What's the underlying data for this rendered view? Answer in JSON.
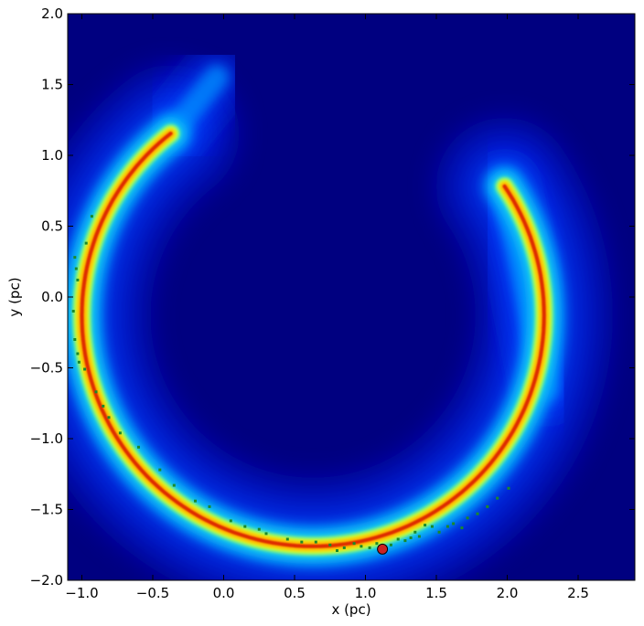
{
  "chart_data": {
    "type": "heatmap",
    "colormap": "jet",
    "xlabel": "x (pc)",
    "ylabel": "y (pc)",
    "xlim": [
      -1.1,
      2.9
    ],
    "ylim": [
      -2.0,
      2.0
    ],
    "x_ticks": [
      -1.0,
      -0.5,
      0.0,
      0.5,
      1.0,
      1.5,
      2.0,
      2.5
    ],
    "y_ticks": [
      2.0,
      1.5,
      1.0,
      0.5,
      0.0,
      -0.5,
      -1.0,
      -1.5,
      -2.0
    ],
    "x_tick_labels": [
      "−1.0",
      "−0.5",
      "0.0",
      "0.5",
      "1.0",
      "1.5",
      "2.0",
      "2.5"
    ],
    "y_tick_labels": [
      "2.0",
      "1.5",
      "1.0",
      "0.5",
      "0.0",
      "−0.5",
      "−1.0",
      "−1.5",
      "−2.0"
    ],
    "grid": false,
    "arc": {
      "center": [
        0.63,
        -0.13
      ],
      "radius": 1.63,
      "angle_start_deg": 128,
      "angle_end_deg": 395,
      "outer_tail_end": [
        -0.05,
        1.55
      ],
      "inner_tail_end": [
        2.28,
        -0.65
      ]
    },
    "marker": {
      "x": 1.12,
      "y": -1.78,
      "color": "#cc2222"
    },
    "stars_color": "#1a8a2a",
    "stars": [
      [
        -1.05,
        0.28
      ],
      [
        -1.04,
        0.2
      ],
      [
        -1.03,
        0.12
      ],
      [
        -0.97,
        0.38
      ],
      [
        -0.93,
        0.57
      ],
      [
        -1.06,
        -0.1
      ],
      [
        -1.05,
        -0.3
      ],
      [
        -1.03,
        -0.4
      ],
      [
        -1.02,
        -0.46
      ],
      [
        -0.98,
        -0.51
      ],
      [
        -0.9,
        -0.67
      ],
      [
        -0.85,
        -0.77
      ],
      [
        -0.81,
        -0.85
      ],
      [
        -0.73,
        -0.96
      ],
      [
        -0.6,
        -1.06
      ],
      [
        -0.45,
        -1.22
      ],
      [
        -0.35,
        -1.33
      ],
      [
        -0.2,
        -1.44
      ],
      [
        -0.1,
        -1.48
      ],
      [
        0.05,
        -1.58
      ],
      [
        0.15,
        -1.62
      ],
      [
        0.25,
        -1.64
      ],
      [
        0.3,
        -1.67
      ],
      [
        0.45,
        -1.71
      ],
      [
        0.55,
        -1.73
      ],
      [
        0.65,
        -1.73
      ],
      [
        0.75,
        -1.75
      ],
      [
        0.8,
        -1.79
      ],
      [
        0.85,
        -1.77
      ],
      [
        0.92,
        -1.74
      ],
      [
        0.97,
        -1.76
      ],
      [
        1.03,
        -1.77
      ],
      [
        1.08,
        -1.74
      ],
      [
        1.18,
        -1.75
      ],
      [
        1.23,
        -1.71
      ],
      [
        1.28,
        -1.72
      ],
      [
        1.32,
        -1.7
      ],
      [
        1.35,
        -1.66
      ],
      [
        1.38,
        -1.69
      ],
      [
        1.42,
        -1.61
      ],
      [
        1.47,
        -1.62
      ],
      [
        1.52,
        -1.66
      ],
      [
        1.58,
        -1.62
      ],
      [
        1.62,
        -1.6
      ],
      [
        1.68,
        -1.63
      ],
      [
        1.72,
        -1.56
      ],
      [
        1.79,
        -1.53
      ],
      [
        1.86,
        -1.48
      ],
      [
        1.93,
        -1.42
      ],
      [
        2.01,
        -1.35
      ]
    ]
  }
}
